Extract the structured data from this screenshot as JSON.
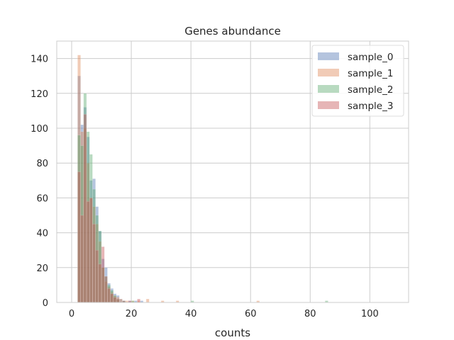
{
  "chart_data": {
    "type": "histogram",
    "title": "Genes abundance",
    "xlabel": "counts",
    "ylabel": "",
    "xlim": [
      -5,
      113
    ],
    "ylim": [
      0,
      150
    ],
    "xticks": [
      0,
      20,
      40,
      60,
      80,
      100
    ],
    "yticks": [
      0,
      20,
      40,
      60,
      80,
      100,
      120,
      140
    ],
    "grid": true,
    "legend_position": "top-right",
    "bin_width": 1,
    "series": [
      {
        "name": "sample_0",
        "color": "#4c72b0",
        "bins": [
          [
            2,
            130
          ],
          [
            3,
            102
          ],
          [
            4,
            112
          ],
          [
            5,
            95
          ],
          [
            6,
            70
          ],
          [
            7,
            71
          ],
          [
            8,
            55
          ],
          [
            9,
            41
          ],
          [
            10,
            25
          ],
          [
            11,
            20
          ],
          [
            12,
            11
          ],
          [
            13,
            8
          ],
          [
            14,
            5
          ],
          [
            15,
            4
          ],
          [
            16,
            2
          ],
          [
            17,
            1
          ],
          [
            19,
            1
          ],
          [
            21,
            1
          ],
          [
            23,
            1
          ]
        ]
      },
      {
        "name": "sample_1",
        "color": "#dd8452",
        "bins": [
          [
            2,
            142
          ],
          [
            3,
            98
          ],
          [
            4,
            100
          ],
          [
            5,
            80
          ],
          [
            6,
            60
          ],
          [
            7,
            55
          ],
          [
            8,
            45
          ],
          [
            9,
            35
          ],
          [
            10,
            20
          ],
          [
            11,
            12
          ],
          [
            12,
            9
          ],
          [
            13,
            6
          ],
          [
            14,
            4
          ],
          [
            15,
            3
          ],
          [
            16,
            2
          ],
          [
            18,
            1
          ],
          [
            20,
            1
          ],
          [
            22,
            1
          ],
          [
            25,
            2
          ],
          [
            30,
            1
          ],
          [
            35,
            1
          ],
          [
            62,
            1
          ]
        ]
      },
      {
        "name": "sample_2",
        "color": "#55a868",
        "bins": [
          [
            2,
            96
          ],
          [
            3,
            90
          ],
          [
            4,
            120
          ],
          [
            5,
            98
          ],
          [
            6,
            85
          ],
          [
            7,
            65
          ],
          [
            8,
            50
          ],
          [
            9,
            41
          ],
          [
            10,
            20
          ],
          [
            11,
            15
          ],
          [
            12,
            10
          ],
          [
            13,
            7
          ],
          [
            14,
            4
          ],
          [
            15,
            2
          ],
          [
            17,
            1
          ],
          [
            20,
            1
          ],
          [
            40,
            1
          ],
          [
            85,
            1
          ]
        ]
      },
      {
        "name": "sample_3",
        "color": "#c44e52",
        "bins": [
          [
            2,
            75
          ],
          [
            3,
            50
          ],
          [
            4,
            108
          ],
          [
            5,
            58
          ],
          [
            6,
            60
          ],
          [
            7,
            45
          ],
          [
            8,
            30
          ],
          [
            9,
            22
          ],
          [
            10,
            32
          ],
          [
            11,
            15
          ],
          [
            12,
            8
          ],
          [
            13,
            5
          ],
          [
            14,
            3
          ],
          [
            15,
            2
          ],
          [
            17,
            1
          ],
          [
            19,
            1
          ],
          [
            22,
            2
          ]
        ]
      }
    ]
  }
}
